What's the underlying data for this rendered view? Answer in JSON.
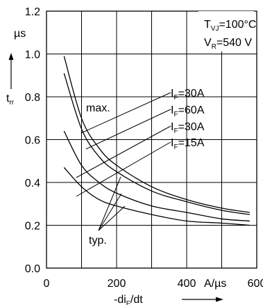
{
  "chart_data": {
    "type": "line",
    "x_unit": "A/µs",
    "y_unit": "µs",
    "ylabel_main": "t",
    "ylabel_sub": "rr",
    "xlabel_prefix": "-di",
    "xlabel_sub": "F",
    "xlabel_suffix": "/dt",
    "xlim": [
      0,
      600
    ],
    "ylim": [
      0.0,
      1.2
    ],
    "x_ticks": [
      0,
      200,
      400,
      600
    ],
    "x_tick_labels": [
      "0",
      "200",
      "400",
      "600"
    ],
    "y_ticks": [
      0.0,
      0.2,
      0.4,
      0.6,
      0.8,
      1.0,
      1.2
    ],
    "y_tick_labels": [
      "0.0",
      "0.2",
      "0.4",
      "0.6",
      "0.8",
      "1.0",
      "1.2"
    ],
    "grid": true,
    "conditions": [
      {
        "main": "T",
        "sub": "VJ",
        "rest": "=100°C"
      },
      {
        "main": "V",
        "sub": "R",
        "rest": "=540 V"
      }
    ],
    "series": [
      {
        "name": "max. I_F=30A",
        "label_main": "I",
        "label_sub": "F",
        "label_rest": "=30A",
        "x": [
          50,
          100,
          150,
          200,
          300,
          400,
          500,
          580
        ],
        "y": [
          0.99,
          0.7,
          0.56,
          0.48,
          0.38,
          0.32,
          0.28,
          0.26
        ]
      },
      {
        "name": "typ. I_F=60A",
        "label_main": "I",
        "label_sub": "F",
        "label_rest": "=60A",
        "x": [
          50,
          100,
          150,
          200,
          300,
          400,
          500,
          580
        ],
        "y": [
          0.91,
          0.65,
          0.52,
          0.45,
          0.36,
          0.31,
          0.27,
          0.25
        ]
      },
      {
        "name": "typ. I_F=30A",
        "label_main": "I",
        "label_sub": "F",
        "label_rest": "=30A",
        "x": [
          50,
          100,
          150,
          200,
          300,
          400,
          500,
          580
        ],
        "y": [
          0.64,
          0.48,
          0.4,
          0.35,
          0.29,
          0.26,
          0.23,
          0.22
        ]
      },
      {
        "name": "typ. I_F=15A",
        "label_main": "I",
        "label_sub": "F",
        "label_rest": "=15A",
        "x": [
          50,
          100,
          150,
          200,
          300,
          400,
          500,
          580
        ],
        "y": [
          0.47,
          0.38,
          0.32,
          0.29,
          0.25,
          0.22,
          0.21,
          0.2
        ]
      }
    ],
    "annotations": {
      "max": "max.",
      "typ": "typ."
    }
  }
}
